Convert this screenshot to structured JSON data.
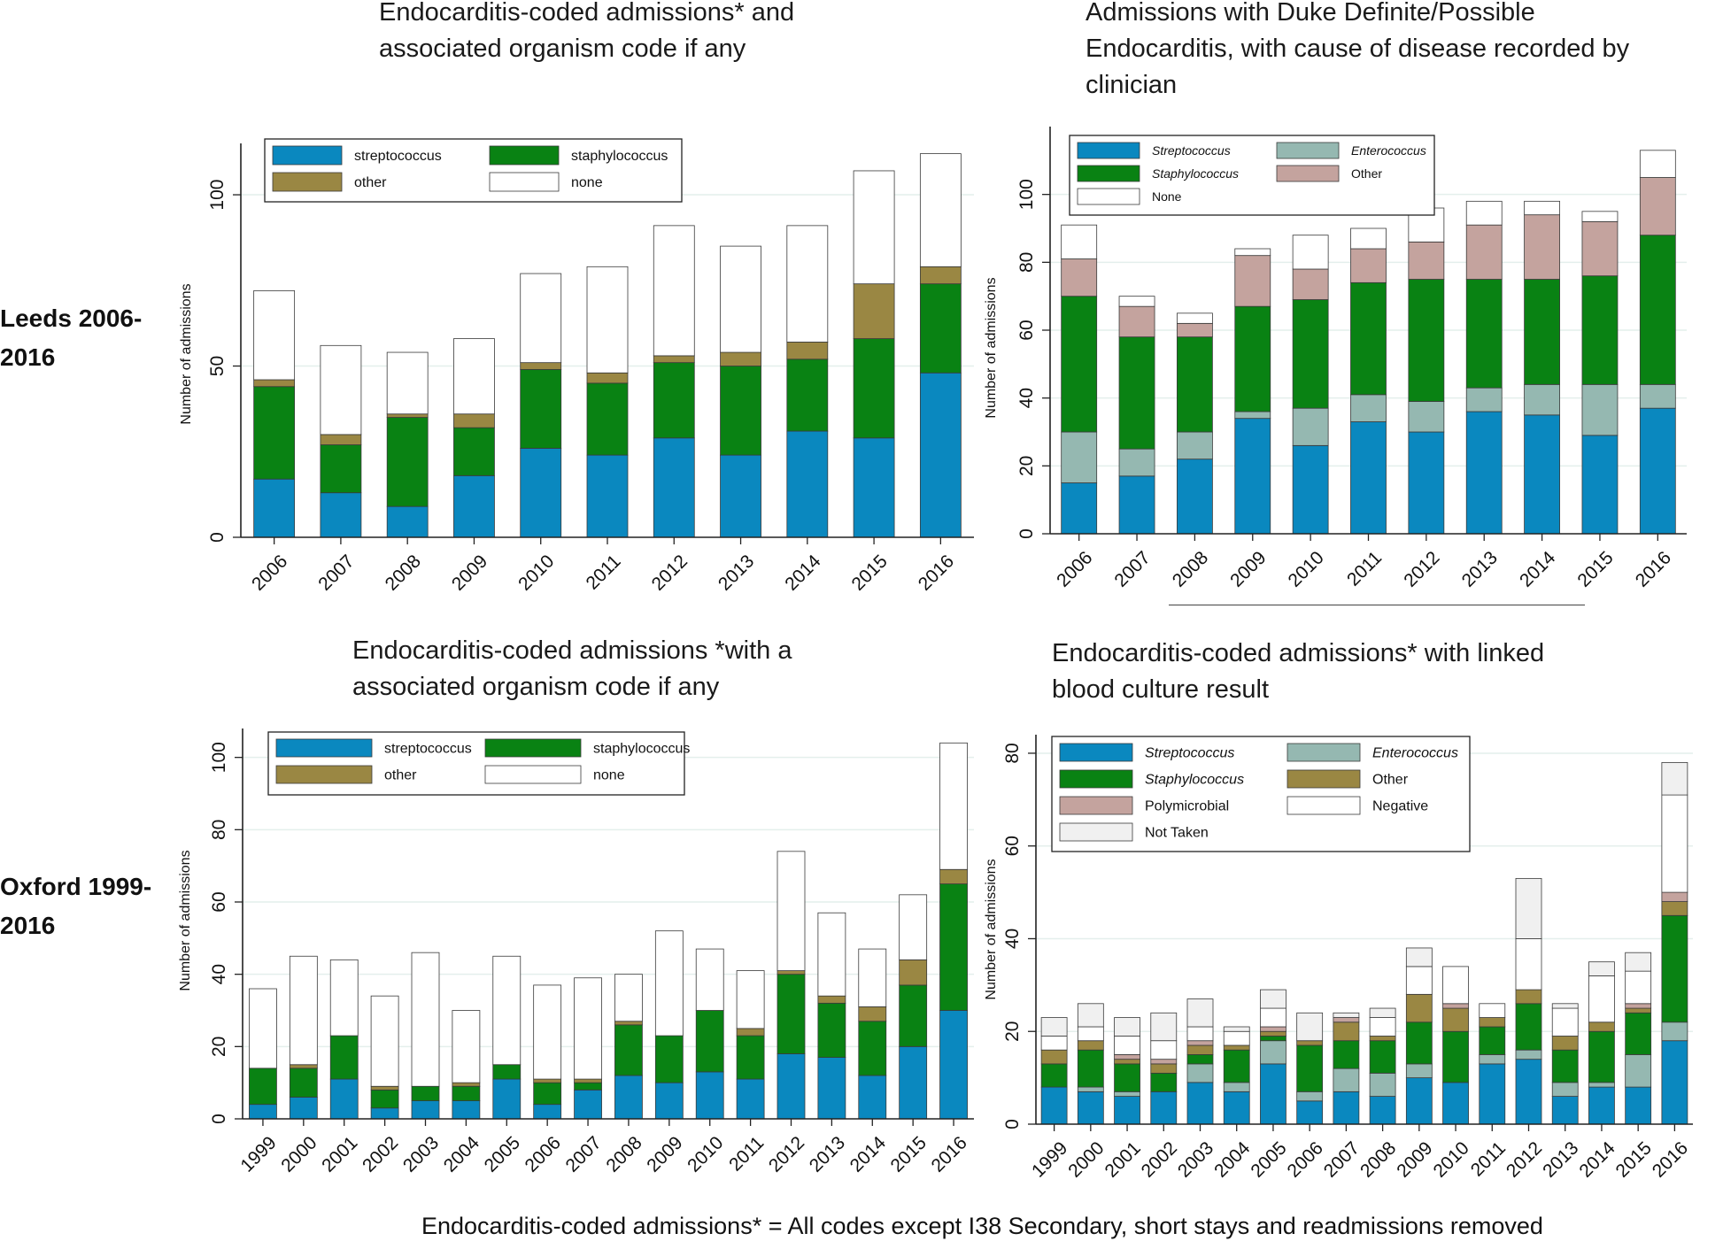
{
  "row_labels": {
    "top": "Leeds 2006-\n2016",
    "bottom": "Oxford 1999-\n2016"
  },
  "footnote": "Endocarditis-coded admissions*  = All codes except I38 Secondary, short stays and readmissions removed",
  "colors": {
    "streptococcus": "#0a88bf",
    "staphylococcus": "#098213",
    "other": "#9a8743",
    "enterococcus": "#95b8b1",
    "other_pink": "#c4a39e",
    "polymicrobial": "#c4a39e",
    "negative": "#ffffff",
    "not_taken": "#f0f0f0",
    "none": "#ffffff"
  },
  "chart_data": [
    {
      "id": "tl",
      "type": "bar",
      "stacked": true,
      "title": "Endocarditis-coded admissions* and\nassociated organism code if any",
      "xlabel": "",
      "ylabel": "Number of admissions",
      "ylim": [
        0,
        115
      ],
      "yticks": [
        0,
        50,
        100
      ],
      "categories": [
        "2006",
        "2007",
        "2008",
        "2009",
        "2010",
        "2011",
        "2012",
        "2013",
        "2014",
        "2015",
        "2016"
      ],
      "legend_columns": 2,
      "series": [
        {
          "name": "streptococcus",
          "color": "#0a88bf",
          "italic": false,
          "values": [
            17,
            13,
            9,
            18,
            26,
            24,
            29,
            24,
            31,
            29,
            48
          ]
        },
        {
          "name": "staphylococcus",
          "color": "#098213",
          "italic": false,
          "values": [
            27,
            14,
            26,
            14,
            23,
            21,
            22,
            26,
            21,
            29,
            26
          ]
        },
        {
          "name": "other",
          "color": "#9a8743",
          "italic": false,
          "values": [
            2,
            3,
            1,
            4,
            2,
            3,
            2,
            4,
            5,
            16,
            5
          ]
        },
        {
          "name": "none",
          "color": "#ffffff",
          "italic": false,
          "values": [
            26,
            26,
            18,
            22,
            26,
            31,
            38,
            31,
            34,
            33,
            33
          ]
        }
      ]
    },
    {
      "id": "tr",
      "type": "bar",
      "stacked": true,
      "title": "Admissions with Duke Definite/Possible\nEndocarditis, with cause of disease recorded by\nclinician",
      "xlabel": "",
      "ylabel": "Number of admissions",
      "ylim": [
        0,
        120
      ],
      "yticks": [
        0,
        20,
        40,
        60,
        80,
        100
      ],
      "categories": [
        "2006",
        "2007",
        "2008",
        "2009",
        "2010",
        "2011",
        "2012",
        "2013",
        "2014",
        "2015",
        "2016"
      ],
      "legend_columns": 2,
      "series": [
        {
          "name": "Streptococcus",
          "color": "#0a88bf",
          "italic": true,
          "values": [
            15,
            17,
            22,
            34,
            26,
            33,
            30,
            36,
            35,
            29,
            37
          ]
        },
        {
          "name": "Enterococcus",
          "color": "#95b8b1",
          "italic": true,
          "values": [
            15,
            8,
            8,
            2,
            11,
            8,
            9,
            7,
            9,
            15,
            7
          ]
        },
        {
          "name": "Staphylococcus",
          "color": "#098213",
          "italic": true,
          "values": [
            40,
            33,
            28,
            31,
            32,
            33,
            36,
            32,
            31,
            32,
            44
          ]
        },
        {
          "name": "Other",
          "color": "#c4a39e",
          "italic": false,
          "values": [
            11,
            9,
            4,
            15,
            9,
            10,
            11,
            16,
            19,
            16,
            17
          ]
        },
        {
          "name": "None",
          "color": "#ffffff",
          "italic": false,
          "values": [
            10,
            3,
            3,
            2,
            10,
            6,
            10,
            7,
            4,
            3,
            8
          ]
        }
      ]
    },
    {
      "id": "bl",
      "type": "bar",
      "stacked": true,
      "title": "Endocarditis-coded admissions *with a\nassociated organism code if any",
      "xlabel": "",
      "ylabel": "Number of admissions",
      "ylim": [
        0,
        108
      ],
      "yticks": [
        0,
        20,
        40,
        60,
        80,
        100
      ],
      "categories": [
        "1999",
        "2000",
        "2001",
        "2002",
        "2003",
        "2004",
        "2005",
        "2006",
        "2007",
        "2008",
        "2009",
        "2010",
        "2011",
        "2012",
        "2013",
        "2014",
        "2015",
        "2016"
      ],
      "legend_columns": 2,
      "series": [
        {
          "name": "streptococcus",
          "color": "#0a88bf",
          "italic": false,
          "values": [
            4,
            6,
            11,
            3,
            5,
            5,
            11,
            4,
            8,
            12,
            10,
            13,
            11,
            18,
            17,
            12,
            20,
            30
          ]
        },
        {
          "name": "staphylococcus",
          "color": "#098213",
          "italic": false,
          "values": [
            10,
            8,
            12,
            5,
            4,
            4,
            4,
            6,
            2,
            14,
            13,
            17,
            12,
            22,
            15,
            15,
            17,
            35
          ]
        },
        {
          "name": "other",
          "color": "#9a8743",
          "italic": false,
          "values": [
            0,
            1,
            0,
            1,
            0,
            1,
            0,
            1,
            1,
            1,
            0,
            0,
            2,
            1,
            2,
            4,
            7,
            4
          ]
        },
        {
          "name": "none",
          "color": "#ffffff",
          "italic": false,
          "values": [
            22,
            30,
            21,
            25,
            37,
            20,
            30,
            26,
            28,
            13,
            29,
            17,
            16,
            33,
            23,
            16,
            18,
            35
          ]
        }
      ]
    },
    {
      "id": "br",
      "type": "bar",
      "stacked": true,
      "title": "Endocarditis-coded admissions*  with linked\nblood culture result",
      "xlabel": "",
      "ylabel": "Number of admissions",
      "ylim": [
        0,
        84
      ],
      "yticks": [
        0,
        20,
        40,
        60,
        80
      ],
      "categories": [
        "1999",
        "2000",
        "2001",
        "2002",
        "2003",
        "2004",
        "2005",
        "2006",
        "2007",
        "2008",
        "2009",
        "2010",
        "2011",
        "2012",
        "2013",
        "2014",
        "2015",
        "2016"
      ],
      "legend_columns": 2,
      "series": [
        {
          "name": "Streptococcus",
          "color": "#0a88bf",
          "italic": true,
          "values": [
            8,
            7,
            6,
            7,
            9,
            7,
            13,
            5,
            7,
            6,
            10,
            9,
            13,
            14,
            6,
            8,
            8,
            18
          ]
        },
        {
          "name": "Enterococcus",
          "color": "#95b8b1",
          "italic": true,
          "values": [
            0,
            1,
            1,
            0,
            4,
            2,
            5,
            2,
            5,
            5,
            3,
            0,
            2,
            2,
            3,
            1,
            7,
            4
          ]
        },
        {
          "name": "Staphylococcus",
          "color": "#098213",
          "italic": true,
          "values": [
            5,
            8,
            6,
            4,
            2,
            7,
            1,
            10,
            6,
            7,
            9,
            11,
            6,
            10,
            7,
            11,
            9,
            23
          ]
        },
        {
          "name": "Other",
          "color": "#9a8743",
          "italic": false,
          "values": [
            3,
            2,
            1,
            2,
            2,
            1,
            1,
            1,
            4,
            1,
            6,
            5,
            2,
            3,
            3,
            2,
            1,
            3
          ]
        },
        {
          "name": "Polymicrobial",
          "color": "#c4a39e",
          "italic": false,
          "values": [
            0,
            0,
            1,
            1,
            1,
            0,
            1,
            0,
            1,
            0,
            0,
            1,
            0,
            0,
            0,
            0,
            1,
            2
          ]
        },
        {
          "name": "Negative",
          "color": "#ffffff",
          "italic": false,
          "values": [
            3,
            3,
            4,
            4,
            3,
            3,
            4,
            0,
            0,
            4,
            6,
            8,
            3,
            11,
            6,
            10,
            7,
            21
          ]
        },
        {
          "name": "Not Taken",
          "color": "#f0f0f0",
          "italic": false,
          "values": [
            4,
            5,
            4,
            6,
            6,
            1,
            4,
            6,
            1,
            2,
            4,
            0,
            0,
            13,
            1,
            3,
            4,
            7
          ]
        }
      ]
    }
  ]
}
